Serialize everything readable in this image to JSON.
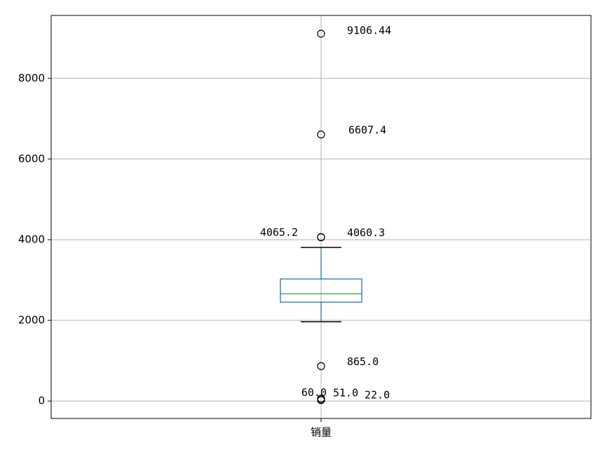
{
  "chart_data": {
    "type": "box",
    "categories": [
      "销量"
    ],
    "boxes": [
      {
        "whislo": 1965,
        "q1": 2452,
        "med": 2661,
        "q3": 3026,
        "whishi": 3809,
        "fliers": [
          9106.44,
          6607.4,
          4065.2,
          4060.3,
          865.0,
          60.0,
          51.0,
          22.0
        ],
        "flier_labels": [
          "9106.44",
          "6607.4",
          "4065.2",
          "4060.3",
          "865.0",
          "60.0",
          "51.0",
          "22.0"
        ]
      }
    ],
    "box_color": "#1f77b4",
    "median_color": "#2ca02c",
    "whisker_color": "#000000",
    "ylim": [
      -432,
      9560
    ],
    "yticks": [
      0,
      2000,
      4000,
      6000,
      8000
    ],
    "grid": true
  }
}
